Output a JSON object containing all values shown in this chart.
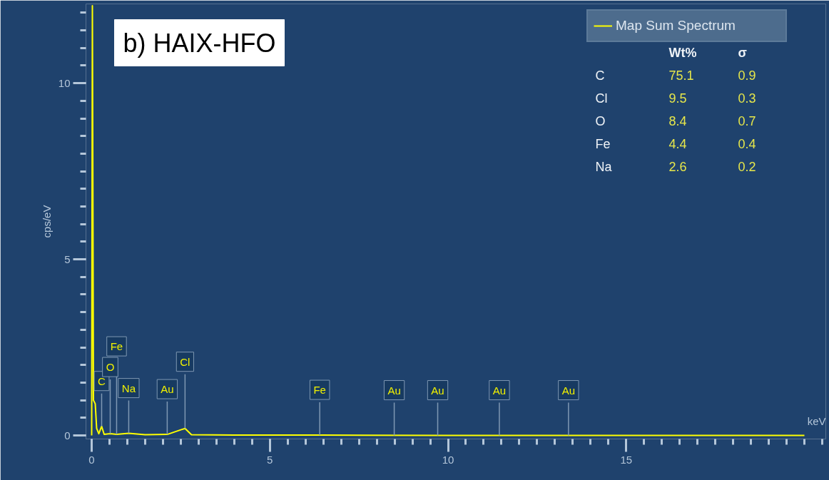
{
  "chart_data": {
    "type": "line",
    "title": "b) HAIX-HFO",
    "xlabel": "keV",
    "ylabel": "cps/eV",
    "x": [
      0,
      0.02,
      0.05,
      0.1,
      0.14,
      0.2,
      0.28,
      0.35,
      0.52,
      0.7,
      1.04,
      1.5,
      2.12,
      2.62,
      2.8,
      4,
      6.4,
      10,
      20
    ],
    "series": [
      {
        "name": "Map Sum Spectrum",
        "color": "#ffff00",
        "values": [
          0,
          12.2,
          1.0,
          0.9,
          0.2,
          0.05,
          0.26,
          0.03,
          0.05,
          0.03,
          0.06,
          0.02,
          0.03,
          0.2,
          0.02,
          0.01,
          0.01,
          0,
          0
        ]
      }
    ],
    "xlim": [
      -0.16,
      20.6
    ],
    "ylim": [
      -0.1,
      12.25
    ],
    "xticks": [
      0,
      5,
      10,
      15
    ],
    "yticks": [
      0,
      5,
      10
    ],
    "legend": "top right",
    "grid": false,
    "marker": "none",
    "line_style": "solid",
    "annotations": [
      {
        "text": "C",
        "x": 0.28,
        "y": 0.26
      },
      {
        "text": "O",
        "x": 0.52,
        "y": 0.05
      },
      {
        "text": "Fe",
        "x": 0.7,
        "y": 0.03
      },
      {
        "text": "Na",
        "x": 1.04,
        "y": 0.06
      },
      {
        "text": "Au",
        "x": 2.12,
        "y": 0.03
      },
      {
        "text": "Cl",
        "x": 2.62,
        "y": 0.2
      },
      {
        "text": "Fe",
        "x": 6.4,
        "y": 0.01
      },
      {
        "text": "Au",
        "x": 8.49,
        "y": 0
      },
      {
        "text": "Au",
        "x": 9.71,
        "y": 0
      },
      {
        "text": "Au",
        "x": 11.44,
        "y": 0
      },
      {
        "text": "Au",
        "x": 13.38,
        "y": 0
      },
      "Wt%",
      "σ",
      "C",
      "75.1",
      "0.9",
      "Cl",
      "9.5",
      "0.3",
      "O",
      "8.4",
      "0.7",
      "Fe",
      "4.4",
      "0.4",
      "Na",
      "2.6",
      "0.2"
    ]
  }
}
